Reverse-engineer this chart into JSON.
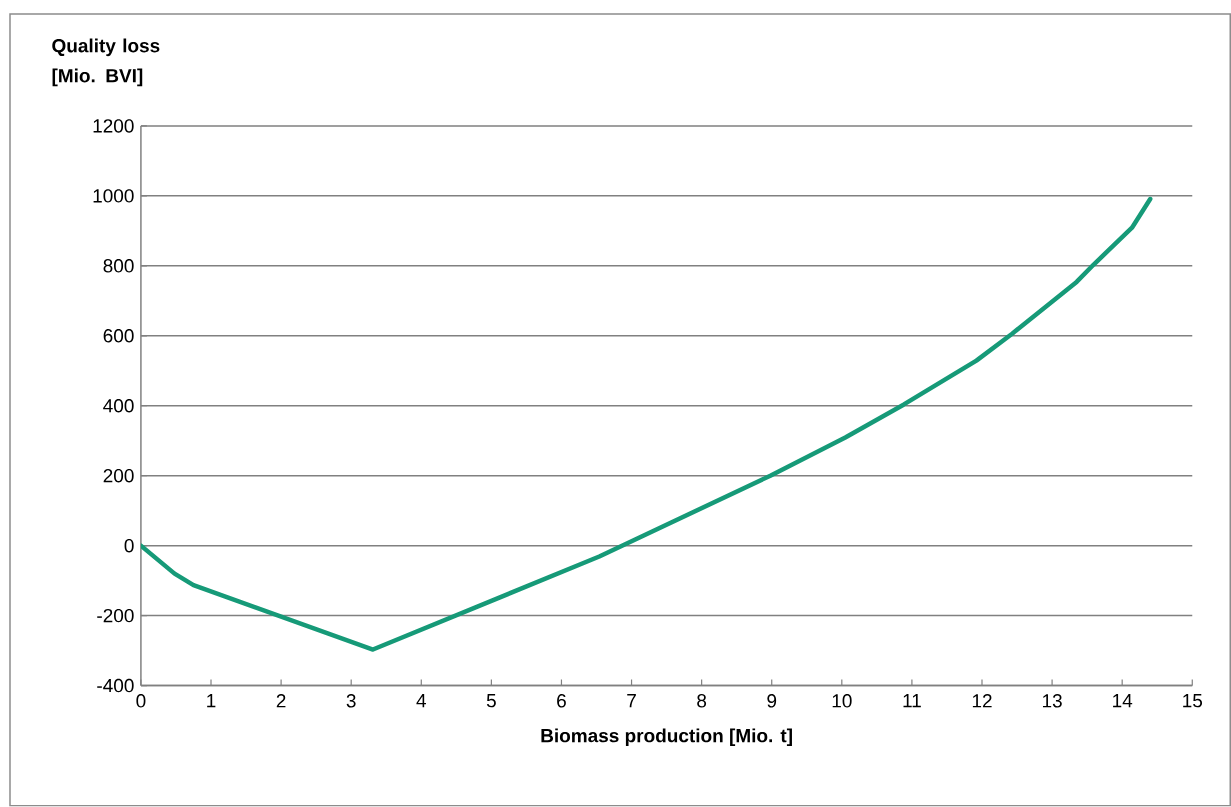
{
  "chart_data": {
    "type": "line",
    "xlabel": "Biomass production [Mio. t]",
    "ylabel": "Quality loss [Mio. BVI]",
    "x": [
      0,
      0.48,
      0.75,
      3.31,
      6.54,
      8.98,
      10.05,
      10.88,
      11.92,
      12.43,
      13.35,
      13.59,
      14.14,
      14.4
    ],
    "series": [
      {
        "color": "#169a78",
        "values": [
          0,
          -80,
          -113,
          -297,
          -31,
          200,
          309,
          403,
          529,
          606,
          754,
          803,
          909,
          991
        ]
      }
    ],
    "xlim": [
      0,
      15
    ],
    "xticks": [
      0,
      1,
      2,
      3,
      4,
      5,
      6,
      7,
      8,
      9,
      10,
      11,
      12,
      13,
      14,
      15
    ],
    "ylim": [
      -400,
      1200
    ],
    "yticks": [
      -400,
      -200,
      0,
      200,
      400,
      600,
      800,
      1000,
      1200
    ],
    "grid": "y",
    "marker": "none",
    "line_style": "solid"
  }
}
